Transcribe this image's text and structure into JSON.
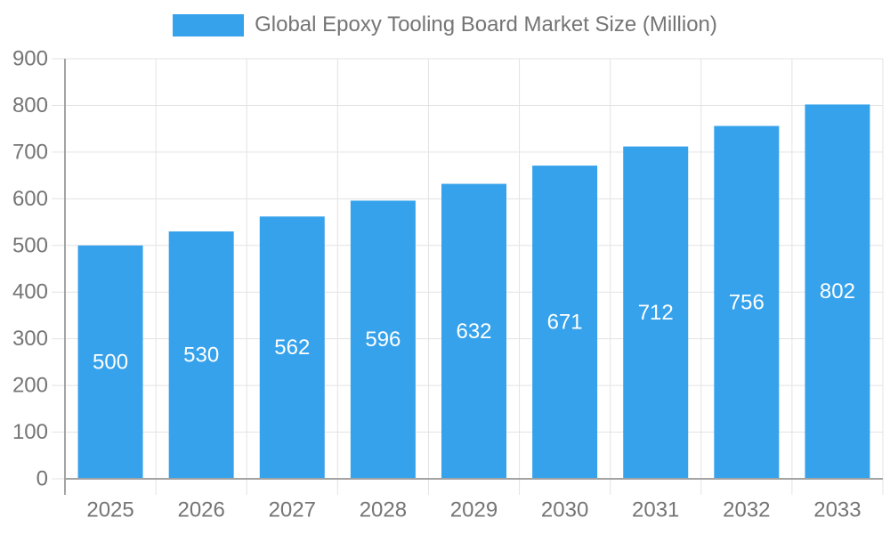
{
  "legend": {
    "title": "Global Epoxy Tooling Board Market Size (Million)"
  },
  "chart_data": {
    "type": "bar",
    "title": "Global Epoxy Tooling Board Market Size (Million)",
    "xlabel": "",
    "ylabel": "",
    "categories": [
      "2025",
      "2026",
      "2027",
      "2028",
      "2029",
      "2030",
      "2031",
      "2032",
      "2033"
    ],
    "values": [
      500,
      530,
      562,
      596,
      632,
      671,
      712,
      756,
      802
    ],
    "ylim": [
      0,
      900
    ],
    "ytick_step": 100,
    "grid": true,
    "legend_position": "top",
    "colors": {
      "bar": "#36A2EB",
      "value_label": "#FFFFFF",
      "text": "#757575",
      "grid": "#E3E3E3",
      "axis": "#A3A3A3"
    },
    "font": {
      "tick_size": 24,
      "value_size": 24,
      "title_size": 24
    }
  }
}
